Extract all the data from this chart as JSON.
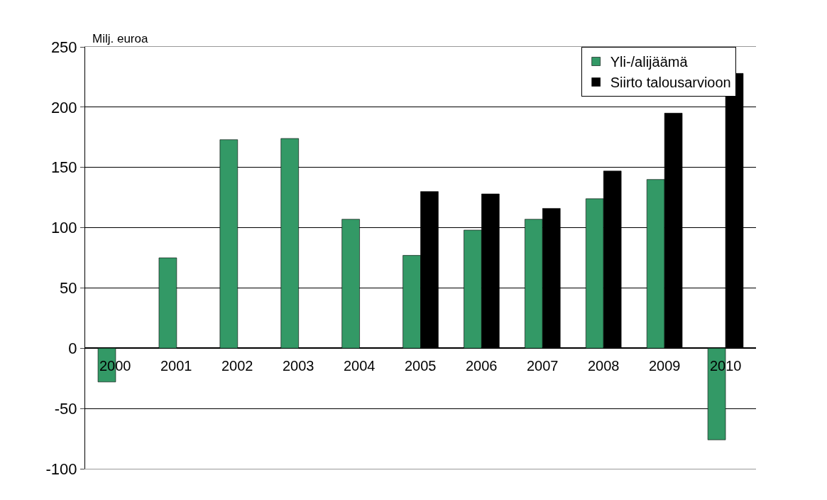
{
  "chart_data": {
    "type": "bar",
    "ylabel": "Milj. euroa",
    "categories": [
      "2000",
      "2001",
      "2002",
      "2003",
      "2004",
      "2005",
      "2006",
      "2007",
      "2008",
      "2009",
      "2010"
    ],
    "series": [
      {
        "name": "Yli-/alijäämä",
        "color": "#339966",
        "values": [
          -28,
          75,
          173,
          174,
          107,
          77,
          98,
          107,
          124,
          140,
          -76
        ]
      },
      {
        "name": "Siirto talousarvioon",
        "color": "#000000",
        "values": [
          null,
          null,
          null,
          null,
          null,
          130,
          128,
          116,
          147,
          195,
          228
        ]
      }
    ],
    "ylim": [
      -100,
      250
    ],
    "yticks": [
      -100,
      -50,
      0,
      50,
      100,
      150,
      200,
      250
    ],
    "grid": "y",
    "legend": "top right"
  }
}
